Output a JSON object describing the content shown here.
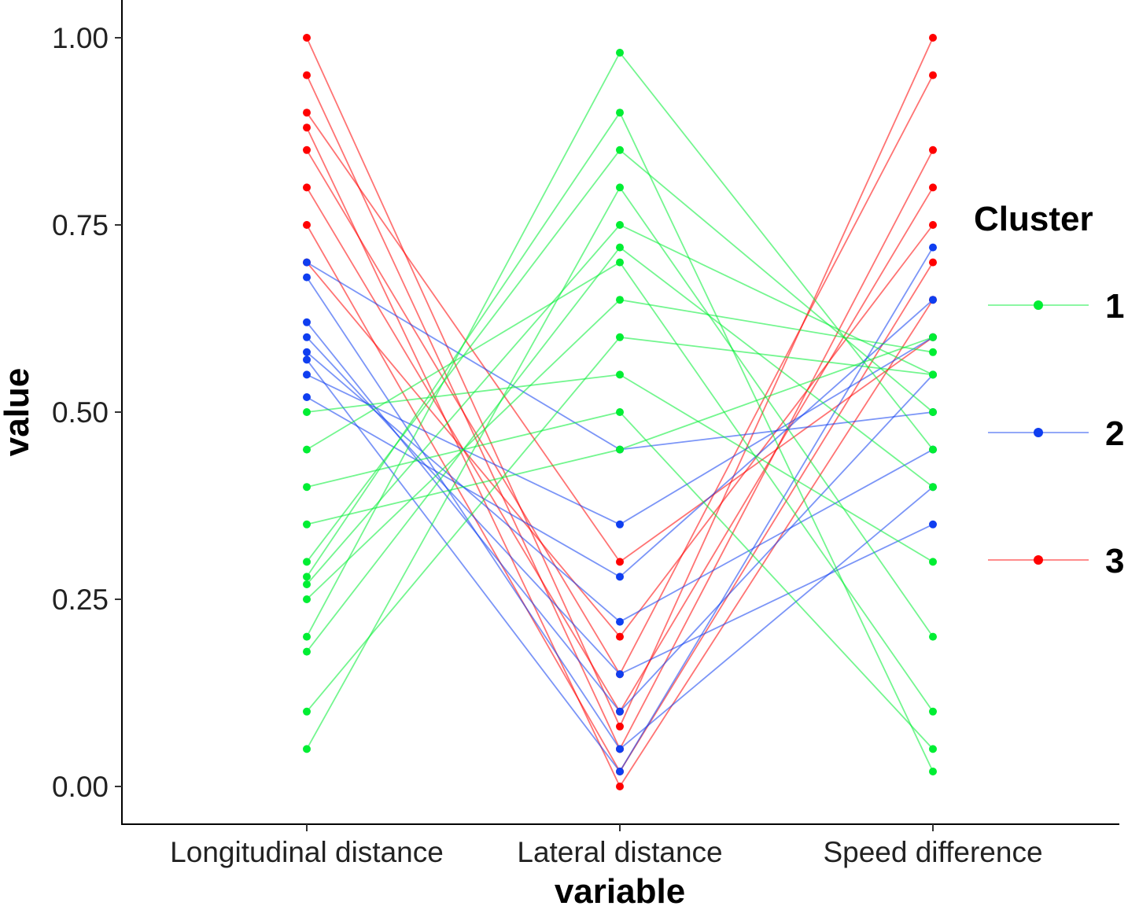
{
  "chart_data": {
    "type": "parallel-coordinates",
    "title": "",
    "xlabel": "variable",
    "ylabel": "value",
    "categories": [
      "Longitudinal distance",
      "Lateral distance",
      "Speed difference"
    ],
    "ylim": [
      0,
      1
    ],
    "yticks": [
      "0.00",
      "0.25",
      "0.50",
      "0.75",
      "1.00"
    ],
    "ytick_values": [
      0,
      0.25,
      0.5,
      0.75,
      1.0
    ],
    "grid": false,
    "legend": {
      "title": "Cluster",
      "placement": "right",
      "entries": [
        {
          "label": "1",
          "color": "#00ee33"
        },
        {
          "label": "2",
          "color": "#0f3ef0"
        },
        {
          "label": "3",
          "color": "#ff0000"
        }
      ]
    },
    "series": [
      {
        "name": "1",
        "color": "#00ee33",
        "profiles": [
          [
            0.27,
            0.75,
            0.55
          ],
          [
            0.3,
            0.85,
            0.5
          ],
          [
            0.2,
            0.98,
            0.45
          ],
          [
            0.45,
            0.7,
            0.1
          ],
          [
            0.1,
            0.6,
            0.55
          ],
          [
            0.5,
            0.55,
            0.3
          ],
          [
            0.28,
            0.9,
            0.02
          ],
          [
            0.35,
            0.45,
            0.6
          ],
          [
            0.05,
            0.8,
            0.2
          ],
          [
            0.25,
            0.65,
            0.58
          ],
          [
            0.4,
            0.5,
            0.05
          ],
          [
            0.18,
            0.72,
            0.4
          ]
        ]
      },
      {
        "name": "2",
        "color": "#0f3ef0",
        "profiles": [
          [
            0.58,
            0.22,
            0.45
          ],
          [
            0.62,
            0.1,
            0.55
          ],
          [
            0.55,
            0.35,
            0.6
          ],
          [
            0.68,
            0.05,
            0.4
          ],
          [
            0.52,
            0.28,
            0.65
          ],
          [
            0.6,
            0.15,
            0.35
          ],
          [
            0.7,
            0.45,
            0.5
          ],
          [
            0.57,
            0.02,
            0.72
          ]
        ]
      },
      {
        "name": "3",
        "color": "#ff0000",
        "profiles": [
          [
            0.95,
            0.05,
            0.85
          ],
          [
            0.85,
            0.15,
            0.95
          ],
          [
            0.75,
            0.02,
            0.7
          ],
          [
            0.9,
            0.3,
            0.6
          ],
          [
            0.8,
            0.1,
            0.8
          ],
          [
            1.0,
            0.08,
            1.0
          ],
          [
            0.7,
            0.2,
            0.75
          ],
          [
            0.88,
            0.0,
            0.65
          ]
        ]
      }
    ]
  }
}
